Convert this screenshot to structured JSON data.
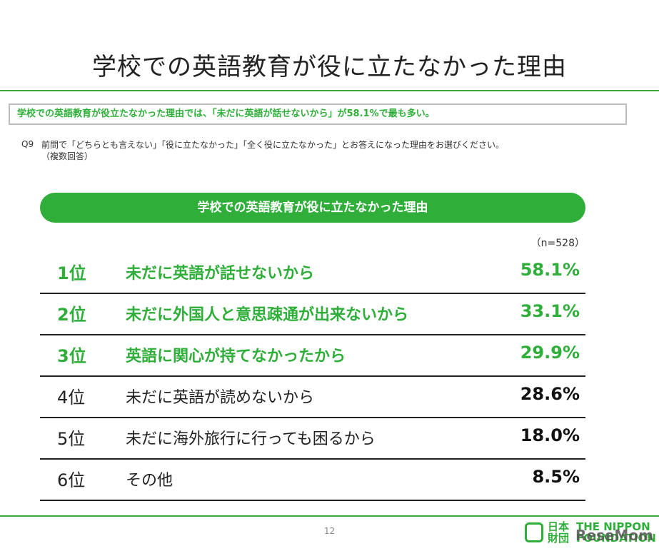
{
  "title": "学校での英語教育が役に立たなかった理由",
  "summary": "学校での英語教育が役立たなかった理由では、「未だに英語が話せないから」が58.1%で最も多い。",
  "question": {
    "number": "Q9",
    "text": "前問で「どちらとも言えない」「役に立たなかった」「全く役に立たなかった」とお答えになった理由をお選びください。",
    "note": "（複数回答）"
  },
  "table": {
    "heading": "学校での英語教育が役に立たなかった理由",
    "n": "（n=528）",
    "rows": [
      {
        "rank": "1位",
        "label": "未だに英語が話せないから",
        "pct": "58.1%"
      },
      {
        "rank": "2位",
        "label": "未だに外国人と意思疎通が出来ないから",
        "pct": "33.1%"
      },
      {
        "rank": "3位",
        "label": "英語に関心が持てなかったから",
        "pct": "29.9%"
      },
      {
        "rank": "4位",
        "label": "未だに英語が読めないから",
        "pct": "28.6%"
      },
      {
        "rank": "5位",
        "label": "未だに海外旅行に行っても困るから",
        "pct": "18.0%"
      },
      {
        "rank": "6位",
        "label": "その他",
        "pct": "8.5%"
      }
    ]
  },
  "footer": {
    "page": "12",
    "logo_kanji_1": "日本",
    "logo_kanji_2": "財団",
    "logo_en_1": "THE NIPPON",
    "logo_en_2": "FOUNDATION",
    "watermark": "ReseMom"
  },
  "colors": {
    "accent": "#2fae3a"
  }
}
